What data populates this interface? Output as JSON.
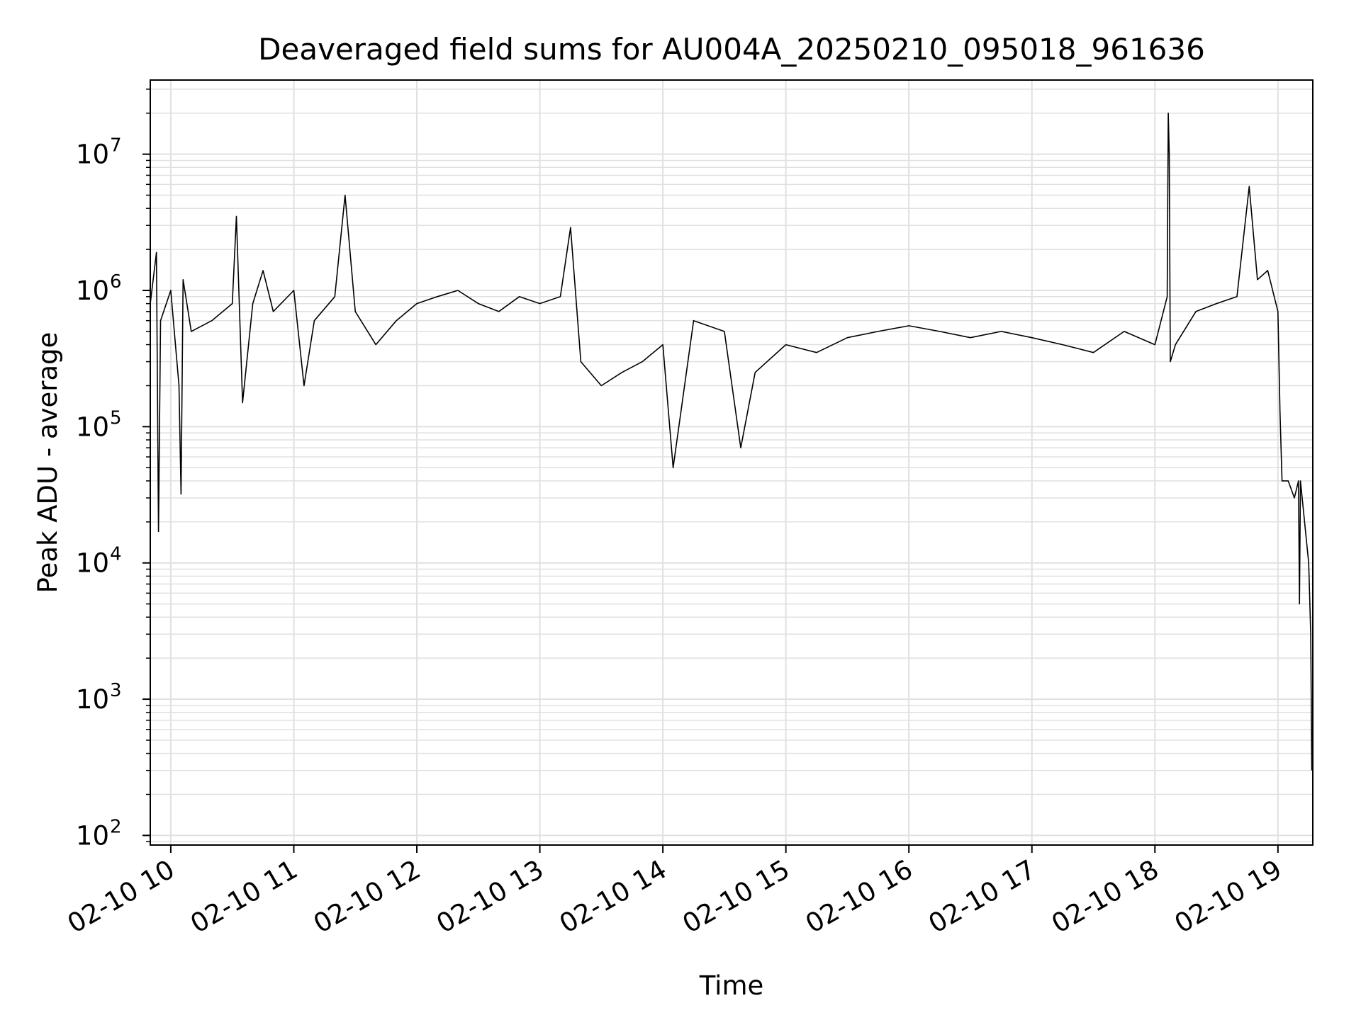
{
  "chart_data": {
    "type": "line",
    "title": "Deaveraged field sums for AU004A_20250210_095018_961636",
    "xlabel": "Time",
    "ylabel": "Peak ADU - average",
    "yscale": "log",
    "ylim": [
      85,
      35000000
    ],
    "xlim": [
      "2025-02-10T09:50:00",
      "2025-02-10T19:17:00"
    ],
    "grid": "major and minor",
    "line_color": "#000000",
    "grid_color": "#e0e0e0",
    "x_ticks": [
      {
        "value": "2025-02-10T10:00:00",
        "label": "02-10 10"
      },
      {
        "value": "2025-02-10T11:00:00",
        "label": "02-10 11"
      },
      {
        "value": "2025-02-10T12:00:00",
        "label": "02-10 12"
      },
      {
        "value": "2025-02-10T13:00:00",
        "label": "02-10 13"
      },
      {
        "value": "2025-02-10T14:00:00",
        "label": "02-10 14"
      },
      {
        "value": "2025-02-10T15:00:00",
        "label": "02-10 15"
      },
      {
        "value": "2025-02-10T16:00:00",
        "label": "02-10 16"
      },
      {
        "value": "2025-02-10T17:00:00",
        "label": "02-10 17"
      },
      {
        "value": "2025-02-10T18:00:00",
        "label": "02-10 18"
      },
      {
        "value": "2025-02-10T19:00:00",
        "label": "02-10 19"
      }
    ],
    "y_ticks": [
      {
        "value": 100,
        "base": "10",
        "exp": "2"
      },
      {
        "value": 1000,
        "base": "10",
        "exp": "3"
      },
      {
        "value": 10000,
        "base": "10",
        "exp": "4"
      },
      {
        "value": 100000,
        "base": "10",
        "exp": "5"
      },
      {
        "value": 1000000,
        "base": "10",
        "exp": "6"
      },
      {
        "value": 10000000,
        "base": "10",
        "exp": "7"
      }
    ],
    "series": [
      {
        "x": [
          "2025-02-10T09:50:00",
          "2025-02-10T09:53:00",
          "2025-02-10T09:54:00",
          "2025-02-10T09:55:00",
          "2025-02-10T10:00:00",
          "2025-02-10T10:04:00",
          "2025-02-10T10:05:00",
          "2025-02-10T10:06:00",
          "2025-02-10T10:10:00",
          "2025-02-10T10:20:00",
          "2025-02-10T10:30:00",
          "2025-02-10T10:32:00",
          "2025-02-10T10:35:00",
          "2025-02-10T10:40:00",
          "2025-02-10T10:45:00",
          "2025-02-10T10:50:00",
          "2025-02-10T11:00:00",
          "2025-02-10T11:05:00",
          "2025-02-10T11:10:00",
          "2025-02-10T11:20:00",
          "2025-02-10T11:25:00",
          "2025-02-10T11:30:00",
          "2025-02-10T11:40:00",
          "2025-02-10T11:50:00",
          "2025-02-10T12:00:00",
          "2025-02-10T12:10:00",
          "2025-02-10T12:20:00",
          "2025-02-10T12:30:00",
          "2025-02-10T12:40:00",
          "2025-02-10T12:50:00",
          "2025-02-10T13:00:00",
          "2025-02-10T13:10:00",
          "2025-02-10T13:15:00",
          "2025-02-10T13:20:00",
          "2025-02-10T13:30:00",
          "2025-02-10T13:40:00",
          "2025-02-10T13:50:00",
          "2025-02-10T14:00:00",
          "2025-02-10T14:05:00",
          "2025-02-10T14:15:00",
          "2025-02-10T14:30:00",
          "2025-02-10T14:38:00",
          "2025-02-10T14:45:00",
          "2025-02-10T15:00:00",
          "2025-02-10T15:15:00",
          "2025-02-10T15:30:00",
          "2025-02-10T15:45:00",
          "2025-02-10T16:00:00",
          "2025-02-10T16:15:00",
          "2025-02-10T16:30:00",
          "2025-02-10T16:45:00",
          "2025-02-10T17:00:00",
          "2025-02-10T17:15:00",
          "2025-02-10T17:30:00",
          "2025-02-10T17:45:00",
          "2025-02-10T18:00:00",
          "2025-02-10T18:06:00",
          "2025-02-10T18:06:30",
          "2025-02-10T18:07:00",
          "2025-02-10T18:07:30",
          "2025-02-10T18:10:00",
          "2025-02-10T18:20:00",
          "2025-02-10T18:30:00",
          "2025-02-10T18:40:00",
          "2025-02-10T18:46:00",
          "2025-02-10T18:50:00",
          "2025-02-10T18:55:00",
          "2025-02-10T19:00:00",
          "2025-02-10T19:01:00",
          "2025-02-10T19:02:00",
          "2025-02-10T19:05:00",
          "2025-02-10T19:08:00",
          "2025-02-10T19:10:00",
          "2025-02-10T19:10:30",
          "2025-02-10T19:11:00",
          "2025-02-10T19:13:00",
          "2025-02-10T19:15:00",
          "2025-02-10T19:16:00",
          "2025-02-10T19:16:30"
        ],
        "y": [
          800000,
          1900000,
          17000,
          600000,
          1000000,
          200000,
          32000,
          1200000,
          500000,
          600000,
          800000,
          3500000,
          150000,
          800000,
          1400000,
          700000,
          1000000,
          200000,
          600000,
          900000,
          5000000,
          700000,
          400000,
          600000,
          800000,
          900000,
          1000000,
          800000,
          700000,
          900000,
          800000,
          900000,
          2900000,
          300000,
          200000,
          250000,
          300000,
          400000,
          50000,
          600000,
          500000,
          70000,
          250000,
          400000,
          350000,
          450000,
          500000,
          550000,
          500000,
          450000,
          500000,
          450000,
          400000,
          350000,
          500000,
          400000,
          900000,
          20000000,
          10000000,
          300000,
          400000,
          700000,
          800000,
          900000,
          5800000,
          1200000,
          1400000,
          700000,
          130000,
          40000,
          40000,
          30000,
          40000,
          5000,
          40000,
          20000,
          10000,
          3000,
          300
        ]
      }
    ]
  }
}
